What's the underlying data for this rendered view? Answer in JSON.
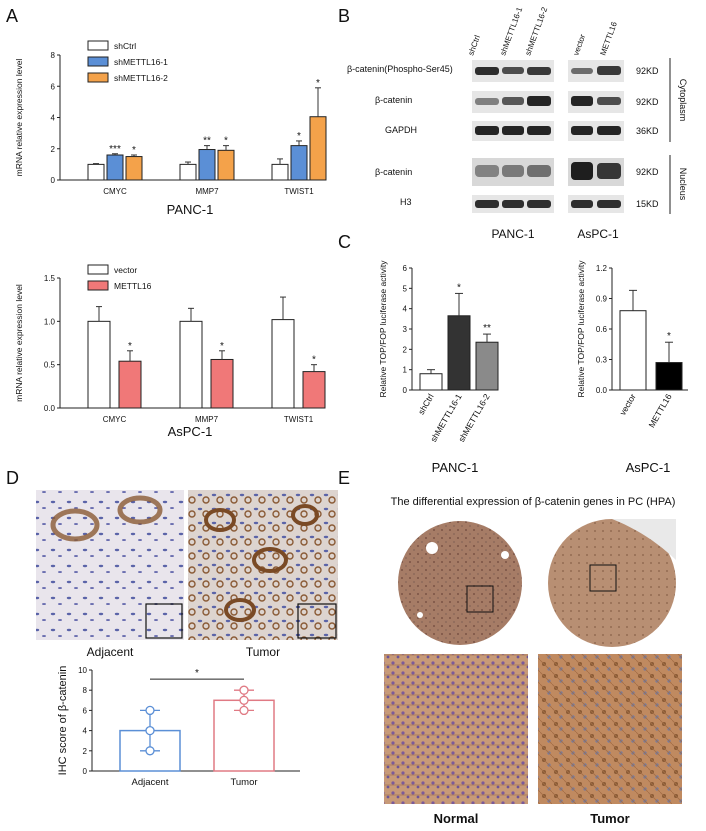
{
  "panels": {
    "A": "A",
    "B": "B",
    "C": "C",
    "D": "D",
    "E": "E"
  },
  "panelA": {
    "charts": [
      {
        "cell_line": "PANC-1",
        "ylabel": "mRNA relative expression level",
        "legend": [
          "shCtrl",
          "shMETTL16-1",
          "shMETTL16-2"
        ],
        "colors": [
          "#ffffff",
          "#5b8fd6",
          "#f4a24a"
        ]
      },
      {
        "cell_line": "AsPC-1",
        "ylabel": "mRNA relative expression level",
        "legend": [
          "vector",
          "METTL16"
        ],
        "colors": [
          "#ffffff",
          "#f07878"
        ]
      }
    ]
  },
  "chart_data": [
    {
      "type": "bar",
      "title": "PANC-1",
      "ylabel": "mRNA relative expression level",
      "categories": [
        "CMYC",
        "MMP7",
        "TWIST1"
      ],
      "series": [
        {
          "name": "shCtrl",
          "values": [
            1.0,
            1.0,
            1.0
          ],
          "errors": [
            0.05,
            0.15,
            0.35
          ]
        },
        {
          "name": "shMETTL16-1",
          "values": [
            1.6,
            1.95,
            2.2
          ],
          "errors": [
            0.08,
            0.25,
            0.3
          ]
        },
        {
          "name": "shMETTL16-2",
          "values": [
            1.5,
            1.9,
            4.05
          ],
          "errors": [
            0.1,
            0.3,
            1.85
          ]
        }
      ],
      "sig": [
        [
          "",
          "***",
          "*"
        ],
        [
          "",
          "**",
          "*"
        ],
        [
          "",
          "*",
          "*"
        ]
      ],
      "ylim": [
        0,
        8
      ],
      "yticks": [
        0,
        2,
        4,
        6,
        8
      ]
    },
    {
      "type": "bar",
      "title": "AsPC-1",
      "ylabel": "mRNA relative expression level",
      "categories": [
        "CMYC",
        "MMP7",
        "TWIST1"
      ],
      "series": [
        {
          "name": "vector",
          "values": [
            1.0,
            1.0,
            1.02
          ],
          "errors": [
            0.17,
            0.15,
            0.26
          ]
        },
        {
          "name": "METTL16",
          "values": [
            0.54,
            0.56,
            0.42
          ],
          "errors": [
            0.12,
            0.1,
            0.08
          ]
        }
      ],
      "sig": [
        [
          "",
          ""
        ],
        [
          "",
          "*"
        ],
        [
          "",
          "*"
        ]
      ],
      "sig2": [
        "*",
        "*",
        "*"
      ],
      "ylim": [
        0,
        1.5
      ],
      "yticks": [
        "0.0",
        "0.5",
        "1.0",
        "1.5"
      ]
    },
    {
      "type": "bar",
      "title": "PANC-1",
      "ylabel": "Relative TOP/FOP luciferase activity",
      "categories": [
        "shCtrl",
        "shMETTL16-1",
        "shMETTL16-2"
      ],
      "values": [
        0.8,
        3.65,
        2.35
      ],
      "errors": [
        0.2,
        1.1,
        0.4
      ],
      "sig": [
        "",
        "*",
        "**"
      ],
      "colors": [
        "#ffffff",
        "#333333",
        "#8a8a8a"
      ],
      "ylim": [
        0,
        6
      ],
      "yticks": [
        0,
        1,
        2,
        3,
        4,
        5,
        6
      ]
    },
    {
      "type": "bar",
      "title": "AsPC-1",
      "ylabel": "Relative TOP/FOP luciferase activity",
      "categories": [
        "vector",
        "METTL16"
      ],
      "values": [
        0.78,
        0.27
      ],
      "errors": [
        0.2,
        0.2
      ],
      "sig": [
        "",
        "*"
      ],
      "colors": [
        "#ffffff",
        "#000000"
      ],
      "ylim": [
        0,
        1.2
      ],
      "yticks": [
        "0.0",
        "0.3",
        "0.6",
        "0.9",
        "1.2"
      ]
    },
    {
      "type": "bar",
      "ylabel": "IHC score of β-catenin",
      "categories": [
        "Adjacent",
        "Tumor"
      ],
      "values": [
        4,
        7
      ],
      "errors": [
        2,
        1
      ],
      "points": [
        [
          2,
          4,
          6
        ],
        [
          6,
          7,
          8
        ]
      ],
      "colors": [
        "#5b8fd6",
        "#e07a84"
      ],
      "sig": "*",
      "ylim": [
        0,
        10
      ],
      "yticks": [
        0,
        2,
        4,
        6,
        8,
        10
      ]
    }
  ],
  "panelB": {
    "lanes_panc": [
      "shCtrl",
      "shMETTL16-1",
      "shMETTL16-2"
    ],
    "lanes_aspc": [
      "vector",
      "METTL16"
    ],
    "rows": [
      {
        "label": "β-catenin(Phospho-Ser45)",
        "kd": "92KD"
      },
      {
        "label": "β-catenin",
        "kd": "92KD"
      },
      {
        "label": "GAPDH",
        "kd": "36KD"
      },
      {
        "label": "β-catenin",
        "kd": "92KD"
      },
      {
        "label": "H3",
        "kd": "15KD"
      }
    ],
    "fractions": [
      "Cytoplasm",
      "Nucleus"
    ],
    "cell_lines": [
      "PANC-1",
      "AsPC-1"
    ]
  },
  "panelD": {
    "labels": [
      "Adjacent",
      "Tumor"
    ]
  },
  "panelE": {
    "title": "The differential expression of β-catenin genes in PC (HPA)",
    "labels": [
      "Normal",
      "Tumor"
    ]
  }
}
